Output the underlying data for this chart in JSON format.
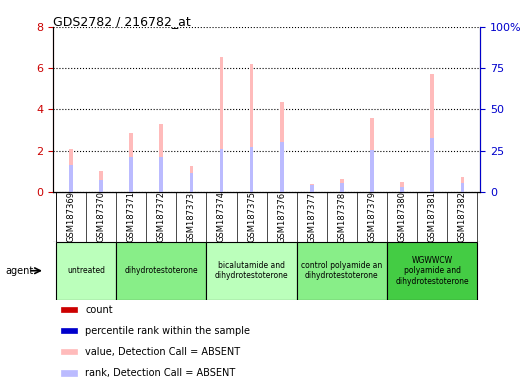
{
  "title": "GDS2782 / 216782_at",
  "samples": [
    "GSM187369",
    "GSM187370",
    "GSM187371",
    "GSM187372",
    "GSM187373",
    "GSM187374",
    "GSM187375",
    "GSM187376",
    "GSM187377",
    "GSM187378",
    "GSM187379",
    "GSM187380",
    "GSM187381",
    "GSM187382"
  ],
  "value_absent": [
    2.1,
    1.0,
    2.85,
    3.3,
    1.25,
    6.55,
    6.2,
    4.35,
    0.38,
    0.65,
    3.6,
    0.48,
    5.7,
    0.75
  ],
  "rank_absent": [
    1.3,
    0.6,
    1.7,
    1.7,
    0.9,
    2.1,
    2.2,
    2.4,
    0.35,
    0.45,
    2.05,
    0.22,
    2.6,
    0.45
  ],
  "ylim_left": [
    0,
    8
  ],
  "ylim_right": [
    0,
    100
  ],
  "yticks_left": [
    0,
    2,
    4,
    6,
    8
  ],
  "ytick_labels_right": [
    "0",
    "25",
    "50",
    "75",
    "100%"
  ],
  "groups": [
    {
      "label": "untreated",
      "start": 0,
      "end": 2,
      "color": "#bbffbb"
    },
    {
      "label": "dihydrotestoterone",
      "start": 2,
      "end": 5,
      "color": "#88ee88"
    },
    {
      "label": "bicalutamide and\ndihydrotestoterone",
      "start": 5,
      "end": 8,
      "color": "#bbffbb"
    },
    {
      "label": "control polyamide an\ndihydrotestoterone",
      "start": 8,
      "end": 11,
      "color": "#88ee88"
    },
    {
      "label": "WGWWCW\npolyamide and\ndihydrotestoterone",
      "start": 11,
      "end": 14,
      "color": "#44cc44"
    }
  ],
  "bar_width": 0.12,
  "color_value_absent": "#ffbbbb",
  "color_rank_absent": "#bbbbff",
  "legend_items": [
    {
      "label": "count",
      "color": "#cc0000"
    },
    {
      "label": "percentile rank within the sample",
      "color": "#0000cc"
    },
    {
      "label": "value, Detection Call = ABSENT",
      "color": "#ffbbbb"
    },
    {
      "label": "rank, Detection Call = ABSENT",
      "color": "#bbbbff"
    }
  ],
  "background_color": "#ffffff",
  "tick_label_color_left": "#cc0000",
  "tick_label_color_right": "#0000cc",
  "sample_label_bg": "#dddddd"
}
